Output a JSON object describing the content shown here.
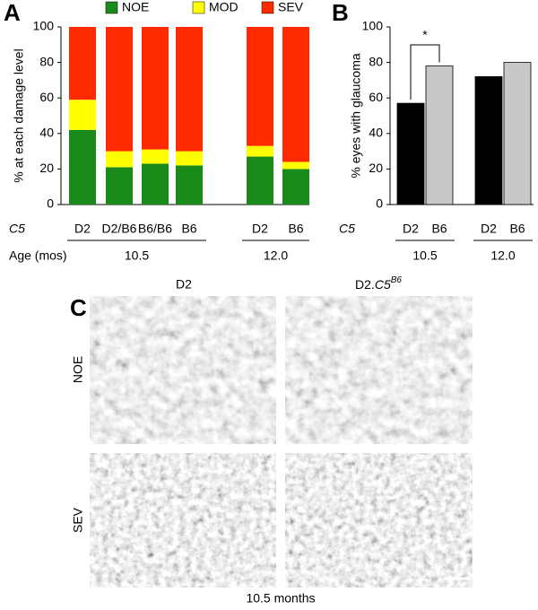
{
  "chart_data": [
    {
      "type": "bar",
      "panel": "A",
      "stacked": true,
      "ylabel": "% at each damage level",
      "row_labels": [
        "C5",
        "Age (mos)"
      ],
      "categories": [
        "D2",
        "D2/B6",
        "B6/B6",
        "B6",
        "D2",
        "B6"
      ],
      "group_labels": [
        "10.5",
        "12.0"
      ],
      "series": [
        {
          "name": "NOE",
          "color": "#1a8a1a",
          "values": [
            42,
            21,
            23,
            22,
            27,
            20
          ]
        },
        {
          "name": "MOD",
          "color": "#ffff00",
          "values": [
            17,
            9,
            8,
            8,
            6,
            4
          ]
        },
        {
          "name": "SEV",
          "color": "#ff2a00",
          "values": [
            41,
            70,
            69,
            70,
            67,
            76
          ]
        }
      ],
      "ylim": [
        0,
        100
      ],
      "yticks": [
        0,
        20,
        40,
        60,
        80,
        100
      ]
    },
    {
      "type": "bar",
      "panel": "B",
      "ylabel": "% eyes with glaucoma",
      "row_labels": [
        "C5"
      ],
      "categories": [
        "D2",
        "B6",
        "D2",
        "B6"
      ],
      "group_labels": [
        "10.5",
        "12.0"
      ],
      "values": [
        57,
        78,
        72,
        80
      ],
      "colors": [
        "#000000",
        "#c8c8c8",
        "#000000",
        "#c8c8c8"
      ],
      "annotation": "*",
      "ylim": [
        0,
        100
      ],
      "yticks": [
        0,
        20,
        40,
        60,
        80,
        100
      ]
    }
  ],
  "micrographs": {
    "panel": "C",
    "columns": [
      {
        "label": "D2"
      },
      {
        "label": "D2.",
        "italic": "C5",
        "superscript": "B6"
      }
    ],
    "rows": [
      "NOE",
      "SEV"
    ],
    "caption": "10.5 months"
  }
}
